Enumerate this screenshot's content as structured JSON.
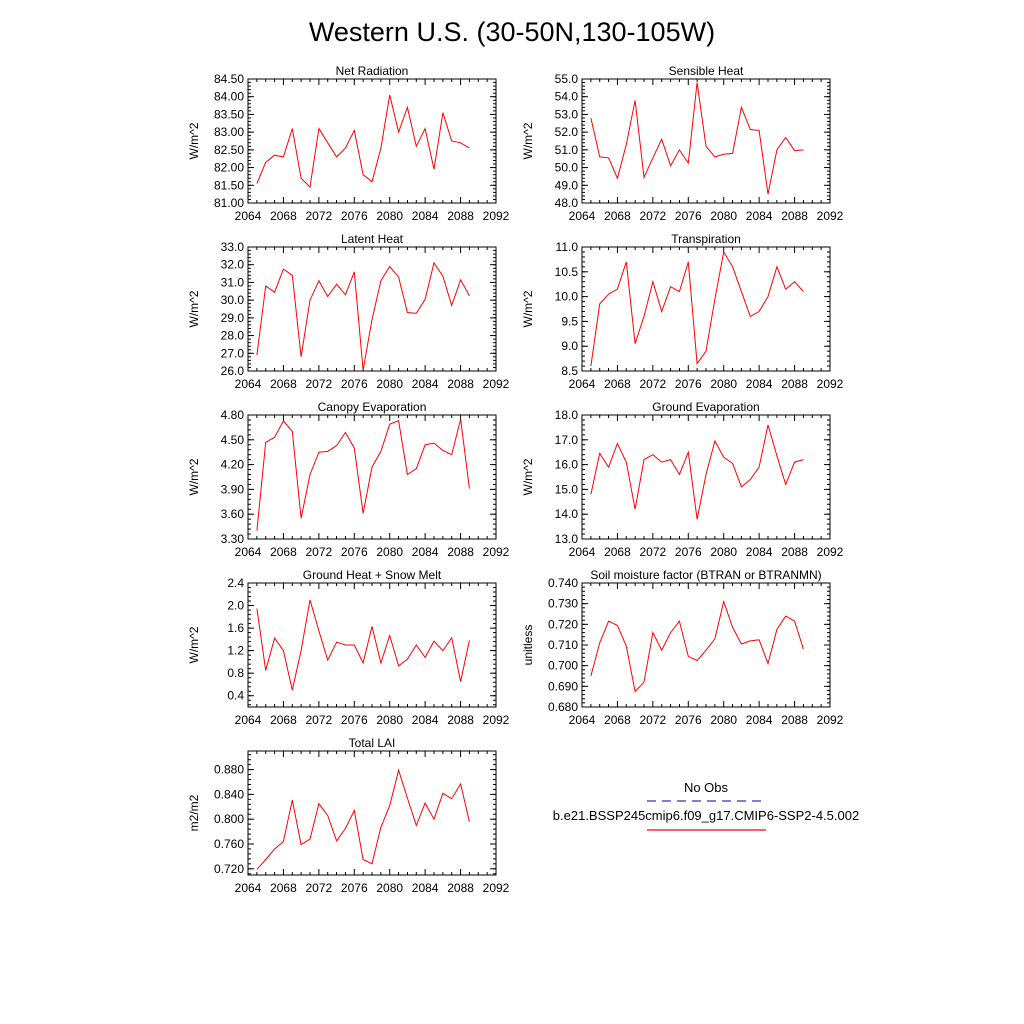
{
  "title": "Western U.S. (30-50N,130-105W)",
  "colors": {
    "series": "#ff0000",
    "obs": "#3333aa",
    "axis": "#000000"
  },
  "legend": {
    "entries": [
      {
        "label": "No Obs",
        "color": "#3333aa",
        "style": "dashed"
      },
      {
        "label": "b.e21.BSSP245cmip6.f09_g17.CMIP6-SSP2-4.5.002",
        "color": "#ff0000",
        "style": "solid"
      }
    ]
  },
  "chart_data": [
    {
      "type": "line",
      "title": "Net Radiation",
      "ylabel": "W/m^2",
      "xlim": [
        2064,
        2092
      ],
      "ylim": [
        81.0,
        84.5
      ],
      "xticks": [
        "2064",
        "2068",
        "2072",
        "2076",
        "2080",
        "2084",
        "2088",
        "2092"
      ],
      "yticks": [
        "81.00",
        "81.50",
        "82.00",
        "82.50",
        "83.00",
        "83.50",
        "84.00",
        "84.50"
      ],
      "x": [
        2065,
        2066,
        2067,
        2068,
        2069,
        2070,
        2071,
        2072,
        2073,
        2074,
        2075,
        2076,
        2077,
        2078,
        2079,
        2080,
        2081,
        2082,
        2083,
        2084,
        2085,
        2086,
        2087,
        2088,
        2089
      ],
      "values": [
        81.55,
        82.15,
        82.35,
        82.3,
        83.1,
        81.7,
        81.45,
        83.1,
        82.7,
        82.3,
        82.55,
        83.05,
        81.8,
        81.6,
        82.55,
        84.05,
        83.0,
        83.7,
        82.6,
        83.1,
        81.95,
        83.55,
        82.75,
        82.7,
        82.55
      ]
    },
    {
      "type": "line",
      "title": "Sensible Heat",
      "ylabel": "W/m^2",
      "xlim": [
        2064,
        2092
      ],
      "ylim": [
        48.0,
        55.0
      ],
      "xticks": [
        "2064",
        "2068",
        "2072",
        "2076",
        "2080",
        "2084",
        "2088",
        "2092"
      ],
      "yticks": [
        "48.0",
        "49.0",
        "50.0",
        "51.0",
        "52.0",
        "53.0",
        "54.0",
        "55.0"
      ],
      "x": [
        2065,
        2066,
        2067,
        2068,
        2069,
        2070,
        2071,
        2072,
        2073,
        2074,
        2075,
        2076,
        2077,
        2078,
        2079,
        2080,
        2081,
        2082,
        2083,
        2084,
        2085,
        2086,
        2087,
        2088,
        2089
      ],
      "values": [
        52.8,
        50.6,
        50.55,
        49.4,
        51.3,
        53.8,
        49.45,
        50.55,
        51.6,
        50.1,
        51.0,
        50.25,
        54.8,
        51.2,
        50.6,
        50.75,
        50.8,
        53.4,
        52.15,
        52.1,
        48.5,
        51.0,
        51.7,
        50.95,
        51.0
      ]
    },
    {
      "type": "line",
      "title": "Latent Heat",
      "ylabel": "W/m^2",
      "xlim": [
        2064,
        2092
      ],
      "ylim": [
        26.0,
        33.0
      ],
      "xticks": [
        "2064",
        "2068",
        "2072",
        "2076",
        "2080",
        "2084",
        "2088",
        "2092"
      ],
      "yticks": [
        "26.0",
        "27.0",
        "28.0",
        "29.0",
        "30.0",
        "31.0",
        "32.0",
        "33.0"
      ],
      "x": [
        2065,
        2066,
        2067,
        2068,
        2069,
        2070,
        2071,
        2072,
        2073,
        2074,
        2075,
        2076,
        2077,
        2078,
        2079,
        2080,
        2081,
        2082,
        2083,
        2084,
        2085,
        2086,
        2087,
        2088,
        2089
      ],
      "values": [
        26.9,
        30.8,
        30.45,
        31.75,
        31.4,
        26.8,
        30.0,
        31.1,
        30.2,
        30.9,
        30.3,
        31.6,
        26.05,
        28.9,
        31.1,
        31.9,
        31.3,
        29.3,
        29.25,
        30.05,
        32.1,
        31.35,
        29.7,
        31.15,
        30.25
      ]
    },
    {
      "type": "line",
      "title": "Transpiration",
      "ylabel": "W/m^2",
      "xlim": [
        2064,
        2092
      ],
      "ylim": [
        8.5,
        11.0
      ],
      "xticks": [
        "2064",
        "2068",
        "2072",
        "2076",
        "2080",
        "2084",
        "2088",
        "2092"
      ],
      "yticks": [
        "8.5",
        "9.0",
        "9.5",
        "10.0",
        "10.5",
        "11.0"
      ],
      "x": [
        2065,
        2066,
        2067,
        2068,
        2069,
        2070,
        2071,
        2072,
        2073,
        2074,
        2075,
        2076,
        2077,
        2078,
        2079,
        2080,
        2081,
        2082,
        2083,
        2084,
        2085,
        2086,
        2087,
        2088,
        2089
      ],
      "values": [
        8.6,
        9.85,
        10.05,
        10.15,
        10.7,
        9.05,
        9.6,
        10.3,
        9.7,
        10.2,
        10.1,
        10.7,
        8.65,
        8.9,
        9.95,
        10.9,
        10.6,
        10.1,
        9.6,
        9.7,
        10.0,
        10.6,
        10.15,
        10.3,
        10.1
      ]
    },
    {
      "type": "line",
      "title": "Canopy Evaporation",
      "ylabel": "W/m^2",
      "xlim": [
        2064,
        2092
      ],
      "ylim": [
        3.3,
        4.8
      ],
      "xticks": [
        "2064",
        "2068",
        "2072",
        "2076",
        "2080",
        "2084",
        "2088",
        "2092"
      ],
      "yticks": [
        "3.30",
        "3.60",
        "3.90",
        "4.20",
        "4.50",
        "4.80"
      ],
      "x": [
        2065,
        2066,
        2067,
        2068,
        2069,
        2070,
        2071,
        2072,
        2073,
        2074,
        2075,
        2076,
        2077,
        2078,
        2079,
        2080,
        2081,
        2082,
        2083,
        2084,
        2085,
        2086,
        2087,
        2088,
        2089
      ],
      "values": [
        3.4,
        4.47,
        4.53,
        4.73,
        4.6,
        3.55,
        4.08,
        4.35,
        4.36,
        4.43,
        4.59,
        4.4,
        3.61,
        4.17,
        4.36,
        4.69,
        4.73,
        4.08,
        4.15,
        4.44,
        4.46,
        4.37,
        4.32,
        4.75,
        3.91
      ]
    },
    {
      "type": "line",
      "title": "Ground Evaporation",
      "ylabel": "W/m^2",
      "xlim": [
        2064,
        2092
      ],
      "ylim": [
        13.0,
        18.0
      ],
      "xticks": [
        "2064",
        "2068",
        "2072",
        "2076",
        "2080",
        "2084",
        "2088",
        "2092"
      ],
      "yticks": [
        "13.0",
        "14.0",
        "15.0",
        "16.0",
        "17.0",
        "18.0"
      ],
      "x": [
        2065,
        2066,
        2067,
        2068,
        2069,
        2070,
        2071,
        2072,
        2073,
        2074,
        2075,
        2076,
        2077,
        2078,
        2079,
        2080,
        2081,
        2082,
        2083,
        2084,
        2085,
        2086,
        2087,
        2088,
        2089
      ],
      "values": [
        14.8,
        16.45,
        15.9,
        16.85,
        16.1,
        14.2,
        16.2,
        16.4,
        16.1,
        16.2,
        15.6,
        16.5,
        13.8,
        15.6,
        16.95,
        16.3,
        16.05,
        15.1,
        15.4,
        15.9,
        17.6,
        16.35,
        15.2,
        16.1,
        16.2
      ]
    },
    {
      "type": "line",
      "title": "Ground Heat + Snow Melt",
      "ylabel": "W/m^2",
      "xlim": [
        2064,
        2092
      ],
      "ylim": [
        0.2,
        2.4
      ],
      "xticks": [
        "2064",
        "2068",
        "2072",
        "2076",
        "2080",
        "2084",
        "2088",
        "2092"
      ],
      "yticks": [
        "0.4",
        "0.8",
        "1.2",
        "1.6",
        "2.0",
        "2.4"
      ],
      "x": [
        2065,
        2066,
        2067,
        2068,
        2069,
        2070,
        2071,
        2072,
        2073,
        2074,
        2075,
        2076,
        2077,
        2078,
        2079,
        2080,
        2081,
        2082,
        2083,
        2084,
        2085,
        2086,
        2087,
        2088,
        2089
      ],
      "values": [
        1.95,
        0.85,
        1.42,
        1.2,
        0.5,
        1.2,
        2.1,
        1.55,
        1.03,
        1.35,
        1.3,
        1.3,
        0.98,
        1.63,
        0.98,
        1.47,
        0.93,
        1.05,
        1.3,
        1.08,
        1.37,
        1.2,
        1.43,
        0.65,
        1.38
      ]
    },
    {
      "type": "line",
      "title": "Soil moisture factor (BTRAN or BTRANMN)",
      "ylabel": "unitless",
      "xlim": [
        2064,
        2092
      ],
      "ylim": [
        0.68,
        0.74
      ],
      "xticks": [
        "2064",
        "2068",
        "2072",
        "2076",
        "2080",
        "2084",
        "2088",
        "2092"
      ],
      "yticks": [
        "0.680",
        "0.690",
        "0.700",
        "0.710",
        "0.720",
        "0.730",
        "0.740"
      ],
      "x": [
        2065,
        2066,
        2067,
        2068,
        2069,
        2070,
        2071,
        2072,
        2073,
        2074,
        2075,
        2076,
        2077,
        2078,
        2079,
        2080,
        2081,
        2082,
        2083,
        2084,
        2085,
        2086,
        2087,
        2088,
        2089
      ],
      "values": [
        0.695,
        0.711,
        0.7215,
        0.7195,
        0.7095,
        0.6875,
        0.692,
        0.716,
        0.7075,
        0.716,
        0.7215,
        0.7045,
        0.7025,
        0.7075,
        0.713,
        0.731,
        0.7185,
        0.7105,
        0.712,
        0.7125,
        0.701,
        0.7175,
        0.724,
        0.7215,
        0.708
      ]
    },
    {
      "type": "line",
      "title": "Total LAI",
      "ylabel": "m2/m2",
      "xlim": [
        2064,
        2092
      ],
      "ylim": [
        0.71,
        0.91
      ],
      "xticks": [
        "2064",
        "2068",
        "2072",
        "2076",
        "2080",
        "2084",
        "2088",
        "2092"
      ],
      "yticks": [
        "0.720",
        "0.760",
        "0.800",
        "0.840",
        "0.880"
      ],
      "x": [
        2065,
        2066,
        2067,
        2068,
        2069,
        2070,
        2071,
        2072,
        2073,
        2074,
        2075,
        2076,
        2077,
        2078,
        2079,
        2080,
        2081,
        2082,
        2083,
        2084,
        2085,
        2086,
        2087,
        2088,
        2089
      ],
      "values": [
        0.719,
        0.735,
        0.752,
        0.764,
        0.831,
        0.759,
        0.768,
        0.825,
        0.806,
        0.765,
        0.785,
        0.814,
        0.735,
        0.728,
        0.787,
        0.822,
        0.879,
        0.834,
        0.79,
        0.826,
        0.8,
        0.842,
        0.833,
        0.857,
        0.796
      ]
    }
  ]
}
